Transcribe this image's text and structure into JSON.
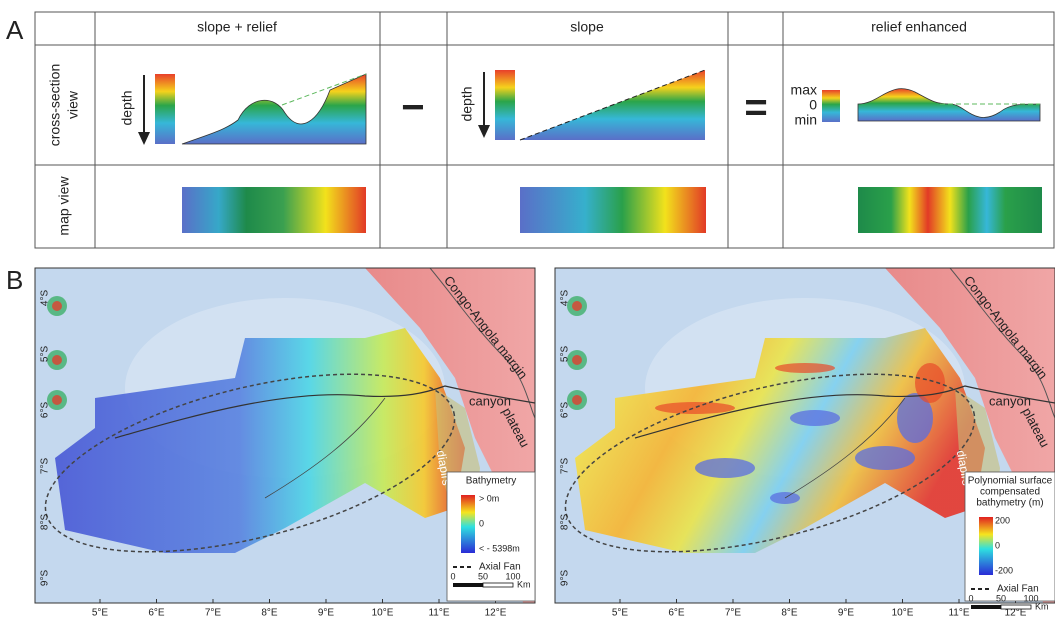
{
  "panel_a": {
    "label": "A",
    "columns": [
      "slope + relief",
      "slope",
      "relief enhanced"
    ],
    "row_labels": [
      [
        "cross-section",
        "view"
      ],
      [
        "map view"
      ]
    ],
    "depth_labels": [
      "depth",
      "depth"
    ],
    "operators": [
      "−",
      "="
    ],
    "scale_labels": [
      "max",
      "0",
      "min"
    ]
  },
  "panel_b": {
    "label": "B",
    "maps": [
      {
        "lat_labels": [
          "4°S",
          "5°S",
          "6°S",
          "7°S",
          "8°S",
          "9°S"
        ],
        "lon_labels": [
          "5°E",
          "6°E",
          "7°E",
          "8°E",
          "9°E",
          "10°E",
          "11°E",
          "12°E"
        ],
        "place_labels": [
          "Congo-Angola margin",
          "canyon",
          "plateau",
          "diapirs"
        ],
        "legend": {
          "title": [
            "Bathymetry"
          ],
          "colorbar_labels": [
            "> 0m",
            "0",
            "< - 5398m"
          ],
          "line_label": "Axial Fan",
          "scale_labels": [
            "0",
            "50",
            "100",
            "Km"
          ]
        }
      },
      {
        "lat_labels": [
          "4°S",
          "5°S",
          "6°S",
          "7°S",
          "8°S",
          "9°S"
        ],
        "lon_labels": [
          "5°E",
          "6°E",
          "7°E",
          "8°E",
          "9°E",
          "10°E",
          "11°E",
          "12°E"
        ],
        "place_labels": [
          "Congo-Angola margin",
          "canyon",
          "plateau",
          "diapirs"
        ],
        "legend": {
          "title": [
            "Polynomial surface",
            "compensated",
            "bathymetry (m)"
          ],
          "colorbar_labels": [
            "200",
            "0",
            "-200"
          ],
          "line_label": "Axial Fan",
          "scale_labels": [
            "0",
            "50",
            "100",
            "Km"
          ]
        }
      }
    ]
  }
}
